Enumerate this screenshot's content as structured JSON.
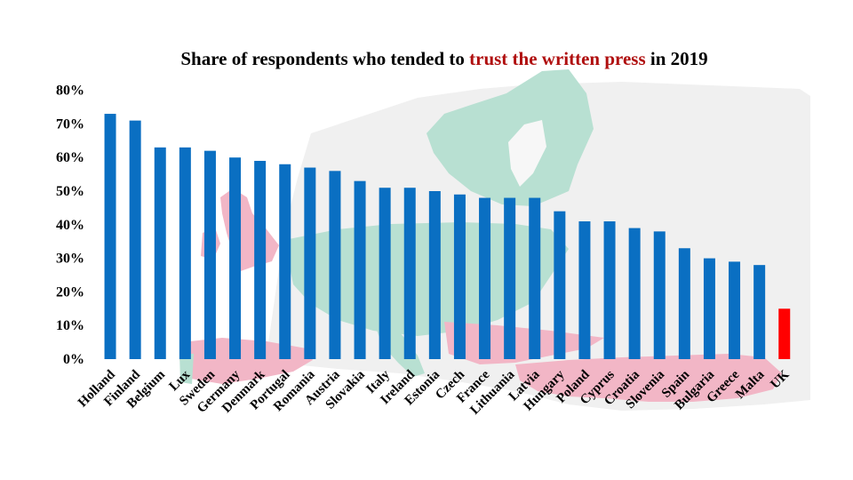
{
  "title": {
    "before": "Share of respondents who tended to ",
    "highlight": "trust the written press",
    "after": " in 2019"
  },
  "colors": {
    "bar": "#0a6fc2",
    "highlight_bar": "#ff0000",
    "highlight_text": "#b01010",
    "map_green": "#b8e0d2",
    "map_pink": "#f2b6c6",
    "map_grey": "#f0f0f0"
  },
  "chart_data": {
    "type": "bar",
    "title": "Share of respondents who tended to trust the written press in 2019",
    "categories": [
      "Holland",
      "Finland",
      "Belgium",
      "Lux",
      "Sweden",
      "Germany",
      "Denmark",
      "Portugal",
      "Romania",
      "Austria",
      "Slovakia",
      "Italy",
      "Ireland",
      "Estonia",
      "Czech",
      "France",
      "Lithuania",
      "Latvia",
      "Hungary",
      "Poland",
      "Cyprus",
      "Croatia",
      "Slovenia",
      "Spain",
      "Bulgaria",
      "Greece",
      "Malta",
      "UK"
    ],
    "values": [
      73,
      71,
      63,
      63,
      62,
      60,
      59,
      58,
      57,
      56,
      53,
      51,
      51,
      50,
      49,
      48,
      48,
      48,
      44,
      41,
      41,
      39,
      38,
      33,
      30,
      29,
      28,
      15
    ],
    "highlight_category": "UK",
    "ylim": [
      0,
      80
    ],
    "yticks": [
      "0%",
      "10%",
      "20%",
      "30%",
      "40%",
      "50%",
      "60%",
      "70%",
      "80%"
    ],
    "xlabel": "",
    "ylabel": "",
    "grid": false,
    "legend": "none",
    "background": "faded map of Europe"
  }
}
